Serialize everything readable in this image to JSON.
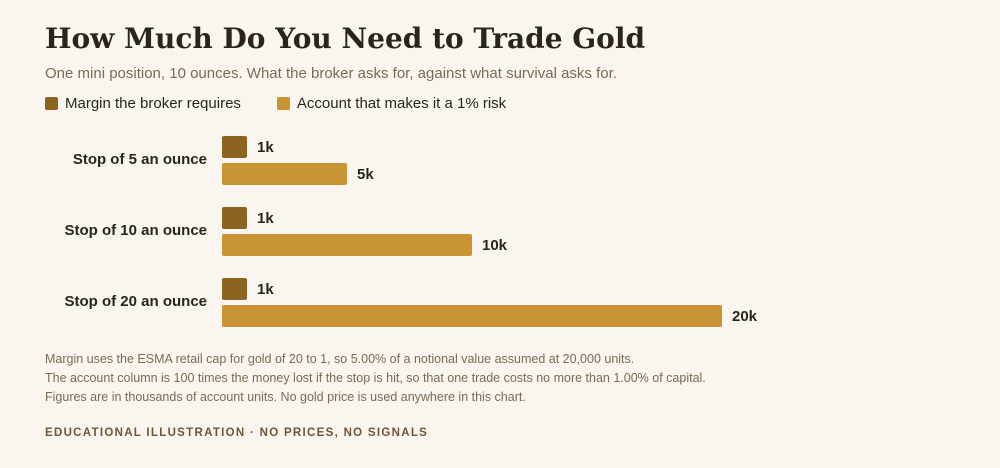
{
  "header": {
    "title": "How Much Do You Need to Trade Gold",
    "subtitle": "One mini position, 10 ounces. What the broker asks for, against what survival asks for."
  },
  "legend": [
    {
      "label": "Margin the broker requires",
      "color": "#8b6420"
    },
    {
      "label": "Account that makes it a 1% risk",
      "color": "#c99433"
    }
  ],
  "chart_data": {
    "type": "bar",
    "orientation": "horizontal",
    "categories": [
      "Stop of 5 an ounce",
      "Stop of 10 an ounce",
      "Stop of 20 an ounce"
    ],
    "series": [
      {
        "name": "Margin the broker requires",
        "values": [
          1,
          1,
          1
        ],
        "labels": [
          "1k",
          "1k",
          "1k"
        ],
        "color": "#8b6420"
      },
      {
        "name": "Account that makes it a 1% risk",
        "values": [
          5,
          10,
          20
        ],
        "labels": [
          "5k",
          "10k",
          "20k"
        ],
        "color": "#c99433"
      }
    ],
    "xlim": [
      0,
      20
    ],
    "grid": false,
    "legend_position": "top-left"
  },
  "notes": [
    "Margin uses the ESMA retail cap for gold of 20 to 1, so 5.00% of a notional value assumed at 20,000 units.",
    "The account column is 100 times the money lost if the stop is hit, so that one trade costs no more than 1.00% of capital.",
    "Figures are in thousands of account units. No gold price is used anywhere in this chart."
  ],
  "footer": "EDUCATIONAL ILLUSTRATION · NO PRICES, NO SIGNALS"
}
